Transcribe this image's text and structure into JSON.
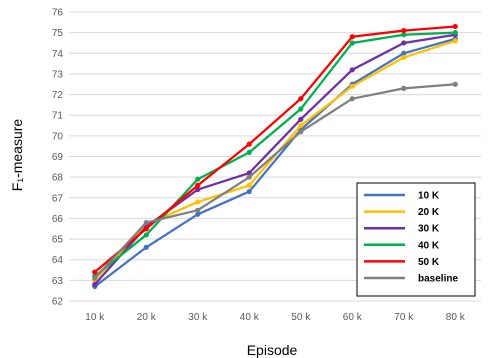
{
  "chart_data": {
    "type": "line",
    "title": "",
    "xlabel": "Episode",
    "ylabel": "F₁-measure",
    "categories": [
      "10 k",
      "20 k",
      "30 k",
      "40 k",
      "50 k",
      "60 k",
      "70 k",
      "80 k"
    ],
    "ylim": [
      62,
      76
    ],
    "yticks": [
      62,
      63,
      64,
      65,
      66,
      67,
      68,
      69,
      70,
      71,
      72,
      73,
      74,
      75,
      76
    ],
    "grid": "horizontal",
    "legend_position": "bottom-right",
    "series": [
      {
        "name": "10 K",
        "color": "#4472C4",
        "values": [
          62.7,
          64.6,
          66.2,
          67.3,
          70.3,
          72.5,
          74.0,
          74.7
        ]
      },
      {
        "name": "20 K",
        "color": "#FFC000",
        "values": [
          63.0,
          65.7,
          66.8,
          67.6,
          70.5,
          72.4,
          73.8,
          74.6
        ]
      },
      {
        "name": "30 K",
        "color": "#7030A0",
        "values": [
          62.8,
          65.6,
          67.4,
          68.2,
          70.8,
          73.2,
          74.5,
          74.9
        ]
      },
      {
        "name": "40 K",
        "color": "#00B050",
        "values": [
          63.2,
          65.2,
          67.9,
          69.2,
          71.3,
          74.5,
          74.9,
          75.0
        ]
      },
      {
        "name": "50 K",
        "color": "#FF0000",
        "values": [
          63.4,
          65.5,
          67.6,
          69.6,
          71.8,
          74.8,
          75.1,
          75.3
        ]
      },
      {
        "name": "baseline",
        "color": "#808080",
        "values": [
          63.1,
          65.8,
          66.4,
          68.0,
          70.2,
          71.8,
          72.3,
          72.5
        ]
      }
    ]
  }
}
